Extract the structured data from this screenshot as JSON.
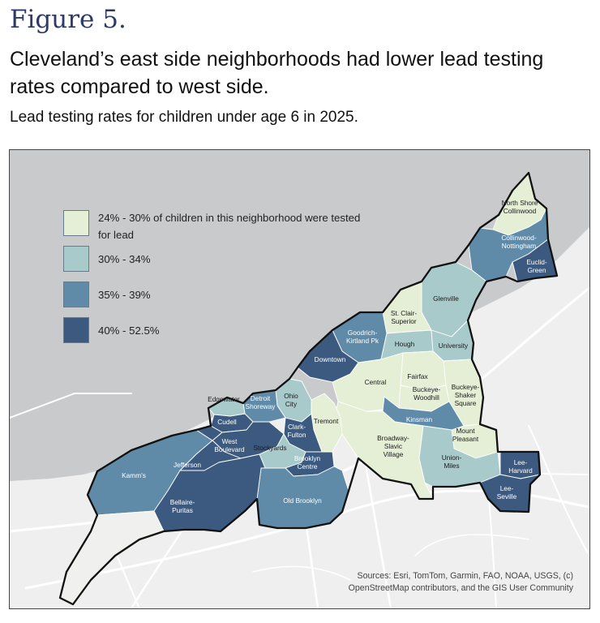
{
  "figure_label": "Figure 5.",
  "headline": "Cleveland’s east side neighborhoods had lower lead testing rates compared to west side.",
  "subhead": "Lead testing rates for children under age 6 in 2025.",
  "colors": {
    "lake": "#c8cacc",
    "land": "#efefef",
    "road": "#ffffff",
    "city_outline": "#111111",
    "bin1": "#e5efd6",
    "bin2": "#a9cacb",
    "bin3": "#5f8ba8",
    "bin4": "#3c5a80",
    "out_of_city": "#f0f0ee"
  },
  "legend": [
    {
      "label": "24% - 30% of children in this neighborhood were tested for lead",
      "bin": "bin1"
    },
    {
      "label": "30% - 34%",
      "bin": "bin2"
    },
    {
      "label": "35% - 39%",
      "bin": "bin3"
    },
    {
      "label": "40% - 52.5%",
      "bin": "bin4"
    }
  ],
  "neighborhoods": {
    "north_shore": {
      "name": "North Shore Collinwood",
      "lines": [
        "North Shore",
        "Collinwood"
      ],
      "bin": "bin1"
    },
    "collinwood_nottingham": {
      "name": "Collinwood-Nottingham",
      "lines": [
        "Collinwood-",
        "Nottingham"
      ],
      "bin": "bin3"
    },
    "euclid_green": {
      "name": "Euclid-Green",
      "lines": [
        "Euclid-",
        "Green"
      ],
      "bin": "bin4"
    },
    "glenville": {
      "name": "Glenville",
      "lines": [
        "Glenville"
      ],
      "bin": "bin2"
    },
    "st_clair": {
      "name": "St. Clair-Superior",
      "lines": [
        "St. Clair-",
        "Superior"
      ],
      "bin": "bin1"
    },
    "goodrich": {
      "name": "Goodrich-Kirtland Pk",
      "lines": [
        "Goodrich-",
        "Kirtland Pk"
      ],
      "bin": "bin3"
    },
    "hough": {
      "name": "Hough",
      "lines": [
        "Hough"
      ],
      "bin": "bin2"
    },
    "university": {
      "name": "University",
      "lines": [
        "University"
      ],
      "bin": "bin2"
    },
    "downtown": {
      "name": "Downtown",
      "lines": [
        "Downtown"
      ],
      "bin": "bin4"
    },
    "central": {
      "name": "Central",
      "lines": [
        "Central"
      ],
      "bin": "bin1"
    },
    "fairfax": {
      "name": "Fairfax",
      "lines": [
        "Fairfax"
      ],
      "bin": "bin1"
    },
    "buckeye_woodhill": {
      "name": "Buckeye-Woodhill",
      "lines": [
        "Buckeye-",
        "Woodhill"
      ],
      "bin": "bin1"
    },
    "buckeye_shaker": {
      "name": "Buckeye-Shaker Square",
      "lines": [
        "Buckeye-",
        "Shaker",
        "Square"
      ],
      "bin": "bin1"
    },
    "kinsman": {
      "name": "Kinsman",
      "lines": [
        "Kinsman"
      ],
      "bin": "bin3"
    },
    "mount_pleasant": {
      "name": "Mount Pleasant",
      "lines": [
        "Mount",
        "Pleasant"
      ],
      "bin": "bin1"
    },
    "broadway_slavic": {
      "name": "Broadway-Slavic Village",
      "lines": [
        "Broadway-",
        "Slavic",
        "Village"
      ],
      "bin": "bin1"
    },
    "union_miles": {
      "name": "Union-Miles",
      "lines": [
        "Union-",
        "Miles"
      ],
      "bin": "bin2"
    },
    "lee_harvard": {
      "name": "Lee-Harvard",
      "lines": [
        "Lee-",
        "Harvard"
      ],
      "bin": "bin4"
    },
    "lee_seville": {
      "name": "Lee-Seville",
      "lines": [
        "Lee-",
        "Seville"
      ],
      "bin": "bin4"
    },
    "tremont": {
      "name": "Tremont",
      "lines": [
        "Tremont"
      ],
      "bin": "bin1"
    },
    "ohio_city": {
      "name": "Ohio City",
      "lines": [
        "Ohio",
        "City"
      ],
      "bin": "bin2"
    },
    "detroit_shoreway": {
      "name": "Detroit Shoreway",
      "lines": [
        "Detroit",
        "Shoreway"
      ],
      "bin": "bin3"
    },
    "edgewater": {
      "name": "Edgewater",
      "lines": [
        "Edgewater"
      ],
      "bin": "bin2"
    },
    "cudell": {
      "name": "Cudell",
      "lines": [
        "Cudell"
      ],
      "bin": "bin4"
    },
    "clark_fulton": {
      "name": "Clark-Fulton",
      "lines": [
        "Clark-",
        "Fulton"
      ],
      "bin": "bin4"
    },
    "west_boulevard": {
      "name": "West Boulevard",
      "lines": [
        "West",
        "Boulevard"
      ],
      "bin": "bin4"
    },
    "stockyards": {
      "name": "Stockyards",
      "lines": [
        "Stockyards"
      ],
      "bin": "bin2"
    },
    "brooklyn_centre": {
      "name": "Brooklyn Centre",
      "lines": [
        "Brooklyn",
        "Centre"
      ],
      "bin": "bin4"
    },
    "old_brooklyn": {
      "name": "Old Brooklyn",
      "lines": [
        "Old Brooklyn"
      ],
      "bin": "bin3"
    },
    "kamms": {
      "name": "Kamm's",
      "lines": [
        "Kamm's"
      ],
      "bin": "bin3"
    },
    "jefferson": {
      "name": "Jefferson",
      "lines": [
        "Jefferson"
      ],
      "bin": "bin4"
    },
    "bellaire_puritas": {
      "name": "Bellaire-Puritas",
      "lines": [
        "Bellaire-",
        "Puritas"
      ],
      "bin": "bin4"
    },
    "hopkins": {
      "name": "",
      "lines": [],
      "bin": "out_of_city"
    }
  },
  "sources": {
    "line1": "Sources:  Esri, TomTom, Garmin, FAO, NOAA, USGS, (c)",
    "line2": "OpenStreetMap contributors, and the GIS User Community"
  }
}
